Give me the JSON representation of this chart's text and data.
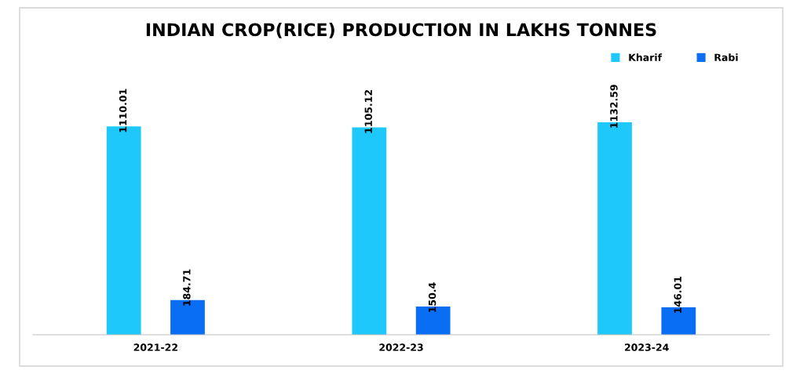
{
  "chart_data": {
    "type": "bar",
    "title": "INDIAN CROP(RICE) PRODUCTION IN LAKHS TONNES",
    "categories": [
      "2021-22",
      "2022-23",
      "2023-24"
    ],
    "series": [
      {
        "name": "Kharif",
        "color": "#1ec8fa",
        "values": [
          1110.01,
          1105.12,
          1132.59
        ]
      },
      {
        "name": "Rabi",
        "color": "#0a6ef5",
        "values": [
          184.71,
          150.4,
          146.01
        ]
      }
    ],
    "data_labels": true,
    "legend": "top right"
  }
}
